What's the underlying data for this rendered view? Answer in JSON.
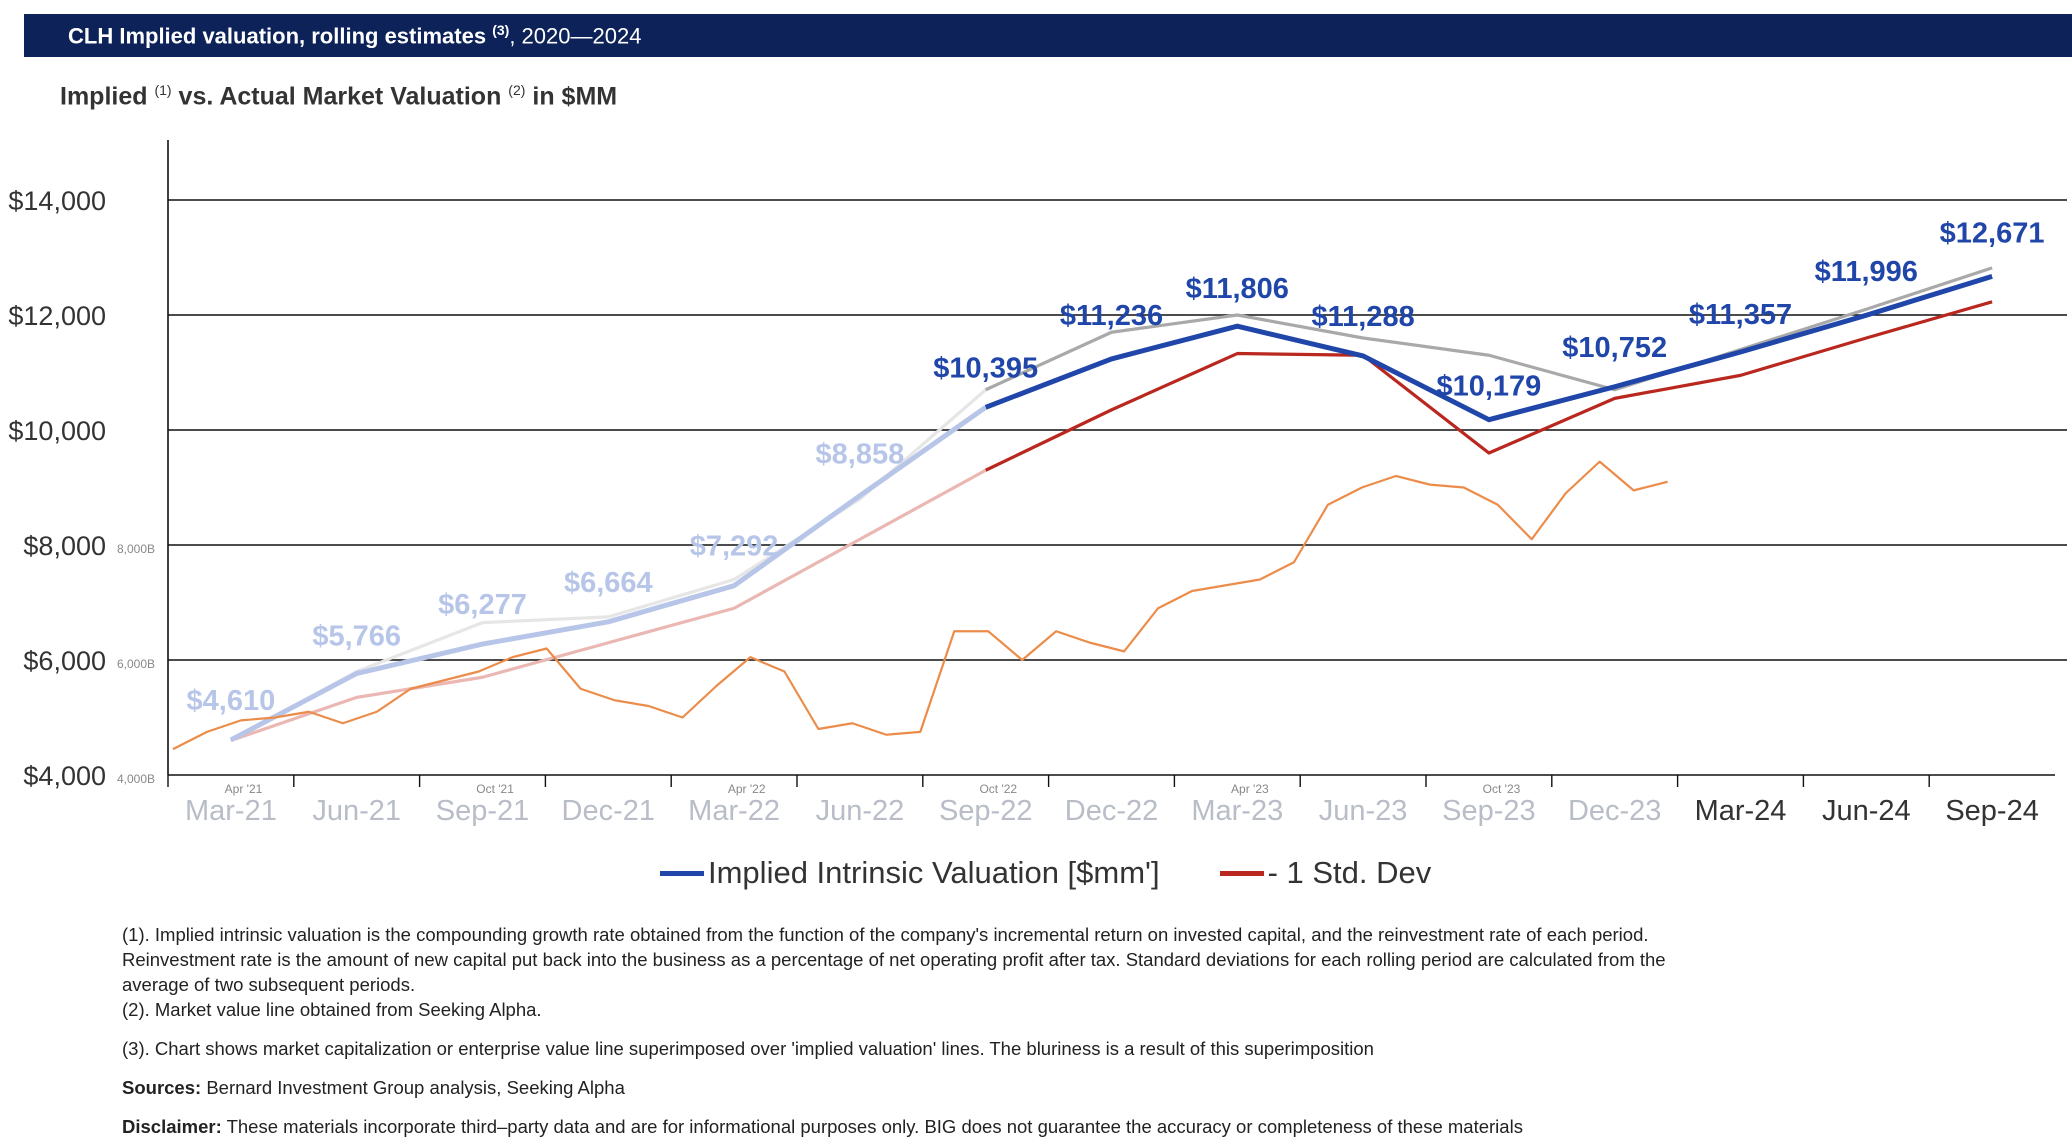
{
  "banner": {
    "title": "CLH Implied valuation, rolling estimates",
    "footnote_ref": "(3)",
    "years": ", 2020—2024"
  },
  "subtitle": {
    "part1": "Implied",
    "ref1": "(1)",
    "part2": "vs. Actual Market Valuation",
    "ref2": "(2)",
    "part3": "in $MM"
  },
  "chart_data": {
    "type": "line",
    "categories": [
      "Mar-21",
      "Jun-21",
      "Sep-21",
      "Dec-21",
      "Mar-22",
      "Jun-22",
      "Sep-22",
      "Dec-22",
      "Mar-23",
      "Jun-23",
      "Sep-23",
      "Dec-23",
      "Mar-24",
      "Jun-24",
      "Sep-24"
    ],
    "y_ticks": [
      "$4,000",
      "$6,000",
      "$8,000",
      "$10,000",
      "$12,000",
      "$14,000"
    ],
    "ylim": [
      4000,
      14000
    ],
    "series": [
      {
        "name": "Implied Intrinsic Valuation [$mm']",
        "color": "#1f46a8",
        "values": [
          4610,
          5766,
          6277,
          6664,
          7292,
          8858,
          10395,
          11236,
          11806,
          11288,
          10179,
          10752,
          11357,
          11996,
          12671
        ],
        "labels": [
          "$4,610",
          "$5,766",
          "$6,277",
          "$6,664",
          "$7,292",
          "$8,858",
          "$10,395",
          "$11,236",
          "$11,806",
          "$11,288",
          "$10,179",
          "$10,752",
          "$11,357",
          "$11,996",
          "$12,671"
        ]
      },
      {
        "name": "- 1 Std. Dev",
        "color": "#b9271f",
        "values": [
          4600,
          5350,
          5700,
          6300,
          6900,
          8100,
          9300,
          10350,
          11330,
          11300,
          9600,
          10550,
          10950,
          11600,
          12230
        ]
      },
      {
        "name": "",
        "color": "#a9a9a9",
        "values": [
          4600,
          5800,
          6650,
          6750,
          7400,
          8800,
          10700,
          11700,
          12000,
          11600,
          11300,
          10700,
          11400,
          12100,
          12820
        ]
      }
    ],
    "market_overlay": {
      "color": "#ec8c4a",
      "months": [
        "Apr '21",
        "Oct '21",
        "Apr '22",
        "Oct '22",
        "Apr '23",
        "Oct '23"
      ],
      "y_ticks": [
        "4,000B",
        "6,000B",
        "8,000B"
      ],
      "values": [
        4450,
        4750,
        4950,
        5000,
        5100,
        4900,
        5100,
        5500,
        5650,
        5800,
        6050,
        6200,
        5500,
        5300,
        5200,
        5000,
        5550,
        6050,
        5800,
        4800,
        4900,
        4700,
        4750,
        6500,
        6500,
        6000,
        6500,
        6300,
        6150,
        6900,
        7200,
        7300,
        7400,
        7700,
        8700,
        9000,
        9200,
        9050,
        9000,
        8700,
        8100,
        8900,
        9450,
        8950,
        9100
      ]
    },
    "title": "Implied vs. Actual Market Valuation in $MM"
  },
  "notes": [
    "(1). Implied intrinsic valuation is the compounding growth rate obtained from the function of the company's incremental return on invested capital, and the reinvestment rate of each period. Reinvestment rate is the amount of new capital put back into the business as a percentage of net operating profit after tax. Standard deviations for each rolling period are calculated from the average of two subsequent periods.",
    "(2). Market value line obtained from Seeking Alpha.",
    "(3). Chart shows market capitalization or enterprise value line superimposed over 'implied valuation' lines. The bluriness is a result of this superimposition"
  ],
  "sources": {
    "label": "Sources:",
    "text": "Bernard Investment Group analysis, Seeking Alpha"
  },
  "disclaimer": {
    "label": "Disclaimer:",
    "text": "These materials incorporate third–party data and are for informational purposes only. BIG does not guarantee the accuracy or completeness of these materials"
  }
}
